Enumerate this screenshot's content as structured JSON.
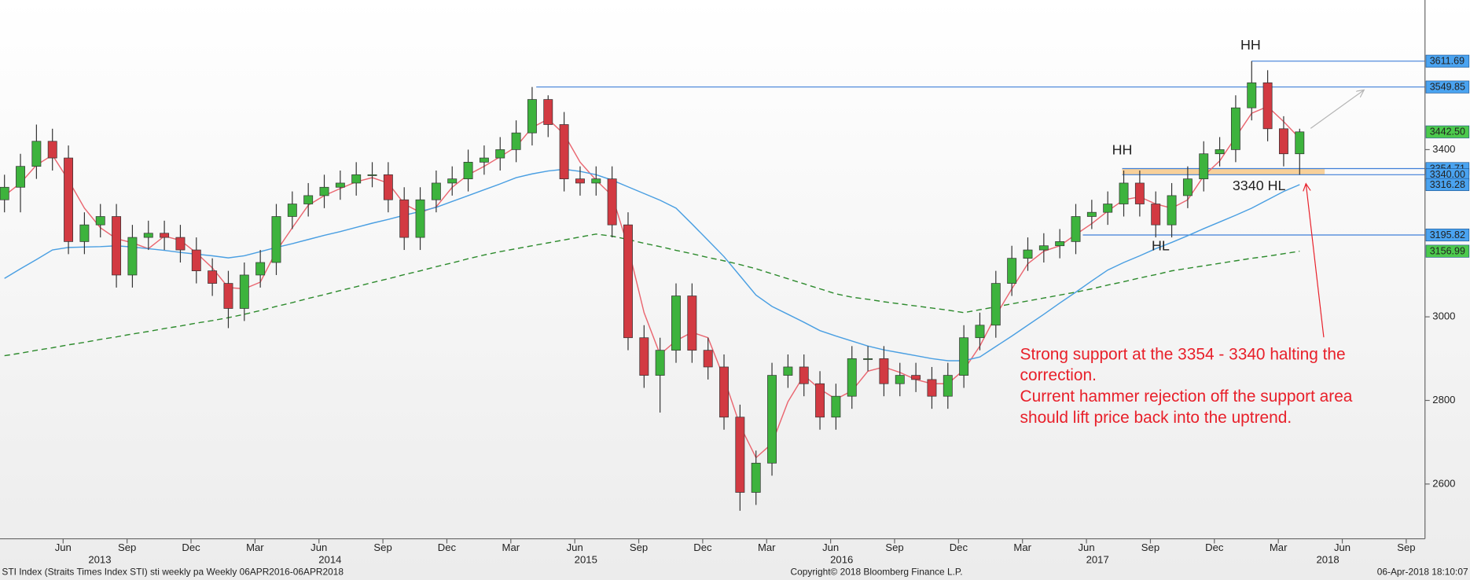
{
  "chart_data": {
    "type": "candlestick",
    "x": [
      2013.1875,
      2013.25,
      2013.3125,
      2013.375,
      2013.4375,
      2013.5,
      2013.5625,
      2013.625,
      2013.6875,
      2013.75,
      2013.8125,
      2013.875,
      2013.9375,
      2014,
      2014.0625,
      2014.125,
      2014.1875,
      2014.25,
      2014.3125,
      2014.375,
      2014.4375,
      2014.5,
      2014.5625,
      2014.625,
      2014.6875,
      2014.75,
      2014.8125,
      2014.875,
      2014.9375,
      2015,
      2015.0625,
      2015.125,
      2015.1875,
      2015.25,
      2015.3125,
      2015.375,
      2015.4375,
      2015.5,
      2015.5625,
      2015.625,
      2015.6875,
      2015.75,
      2015.8125,
      2015.875,
      2015.9375,
      2016,
      2016.0625,
      2016.125,
      2016.1875,
      2016.25,
      2016.3125,
      2016.375,
      2016.4375,
      2016.5,
      2016.5625,
      2016.625,
      2016.6875,
      2016.75,
      2016.8125,
      2016.875,
      2016.9375,
      2017,
      2017.0625,
      2017.125,
      2017.1875,
      2017.25,
      2017.3125,
      2017.375,
      2017.4375,
      2017.5,
      2017.5625,
      2017.625,
      2017.6875,
      2017.75,
      2017.8125,
      2017.875,
      2017.9375,
      2018,
      2018.0625,
      2018.125,
      2018.1875,
      2018.25
    ],
    "open": [
      3280,
      3310,
      3360,
      3420,
      3380,
      3180,
      3220,
      3240,
      3100,
      3190,
      3200,
      3190,
      3160,
      3110,
      3080,
      3020,
      3100,
      3130,
      3240,
      3270,
      3290,
      3310,
      3320,
      3340,
      3340,
      3280,
      3190,
      3280,
      3320,
      3330,
      3370,
      3380,
      3400,
      3440,
      3520,
      3460,
      3330,
      3320,
      3330,
      3220,
      2950,
      2860,
      2920,
      3050,
      2920,
      2880,
      2760,
      2580,
      2650,
      2860,
      2880,
      2840,
      2760,
      2810,
      2900,
      2900,
      2840,
      2860,
      2850,
      2810,
      2860,
      2950,
      2980,
      3080,
      3140,
      3160,
      3170,
      3180,
      3240,
      3250,
      3270,
      3320,
      3270,
      3220,
      3290,
      3330,
      3390,
      3400,
      3500,
      3560,
      3450,
      3390
    ],
    "high": [
      3340,
      3390,
      3460,
      3450,
      3410,
      3250,
      3270,
      3270,
      3220,
      3230,
      3230,
      3220,
      3190,
      3140,
      3110,
      3130,
      3160,
      3270,
      3300,
      3320,
      3340,
      3350,
      3370,
      3370,
      3370,
      3310,
      3310,
      3350,
      3360,
      3400,
      3410,
      3430,
      3470,
      3549.85,
      3530,
      3490,
      3360,
      3360,
      3360,
      3250,
      2980,
      2950,
      3080,
      3080,
      2950,
      2910,
      2790,
      2680,
      2890,
      2910,
      2910,
      2870,
      2840,
      2930,
      2930,
      2930,
      2890,
      2890,
      2880,
      2890,
      2980,
      3010,
      3110,
      3170,
      3190,
      3200,
      3210,
      3270,
      3280,
      3300,
      3350,
      3350,
      3300,
      3320,
      3360,
      3420,
      3430,
      3530,
      3611.69,
      3590,
      3480,
      3450
    ],
    "low": [
      3250,
      3250,
      3330,
      3350,
      3150,
      3150,
      3190,
      3070,
      3070,
      3160,
      3160,
      3130,
      3080,
      3050,
      2973,
      2990,
      3070,
      3100,
      3210,
      3240,
      3260,
      3280,
      3290,
      3310,
      3250,
      3160,
      3160,
      3250,
      3290,
      3300,
      3340,
      3350,
      3370,
      3410,
      3430,
      3300,
      3290,
      3290,
      3190,
      2920,
      2830,
      2771,
      2890,
      2890,
      2850,
      2730,
      2536,
      2550,
      2620,
      2830,
      2810,
      2730,
      2730,
      2780,
      2870,
      2810,
      2810,
      2820,
      2780,
      2780,
      2830,
      2920,
      2950,
      3050,
      3110,
      3130,
      3140,
      3150,
      3210,
      3220,
      3240,
      3240,
      3190,
      3190,
      3260,
      3300,
      3360,
      3370,
      3470,
      3420,
      3360,
      3340
    ],
    "close": [
      3310,
      3360,
      3420,
      3380,
      3180,
      3220,
      3240,
      3100,
      3190,
      3200,
      3190,
      3160,
      3110,
      3080,
      3020,
      3100,
      3130,
      3240,
      3270,
      3290,
      3310,
      3320,
      3340,
      3340,
      3280,
      3190,
      3280,
      3320,
      3330,
      3370,
      3380,
      3400,
      3440,
      3520,
      3460,
      3330,
      3320,
      3330,
      3220,
      2950,
      2860,
      2920,
      3050,
      2920,
      2880,
      2760,
      2580,
      2650,
      2860,
      2880,
      2840,
      2760,
      2810,
      2900,
      2900,
      2840,
      2860,
      2850,
      2810,
      2860,
      2950,
      2980,
      3080,
      3140,
      3160,
      3170,
      3180,
      3240,
      3250,
      3270,
      3320,
      3270,
      3220,
      3290,
      3330,
      3390,
      3400,
      3500,
      3560,
      3450,
      3390,
      3442.5
    ],
    "up_color": "#3db33d",
    "down_color": "#d23a42",
    "moving_averages": [
      {
        "color": "#ea6670",
        "dash": false,
        "values": [
          3290,
          3320,
          3363,
          3387,
          3327,
          3260,
          3213,
          3187,
          3177,
          3163,
          3193,
          3183,
          3153,
          3117,
          3070,
          3067,
          3083,
          3157,
          3213,
          3267,
          3290,
          3307,
          3323,
          3333,
          3320,
          3270,
          3250,
          3263,
          3310,
          3340,
          3360,
          3383,
          3407,
          3453,
          3473,
          3437,
          3370,
          3327,
          3290,
          3167,
          3010,
          2910,
          2943,
          2963,
          2950,
          2853,
          2740,
          2663,
          2697,
          2797,
          2860,
          2827,
          2803,
          2823,
          2870,
          2880,
          2867,
          2850,
          2840,
          2840,
          2873,
          2930,
          3003,
          3067,
          3127,
          3157,
          3170,
          3197,
          3223,
          3253,
          3280,
          3287,
          3270,
          3260,
          3280,
          3337,
          3373,
          3430,
          3487,
          3503,
          3467,
          3427
        ]
      },
      {
        "color": "#4a9fe2",
        "dash": false,
        "values": [
          3092,
          3115,
          3137,
          3160,
          3166,
          3167,
          3168,
          3170,
          3167,
          3163,
          3159,
          3154,
          3150,
          3146,
          3141,
          3146,
          3156,
          3166,
          3175,
          3185,
          3195,
          3204,
          3214,
          3224,
          3233,
          3243,
          3252,
          3262,
          3276,
          3290,
          3304,
          3318,
          3333,
          3342,
          3349,
          3353,
          3348,
          3340,
          3327,
          3311,
          3295,
          3279,
          3260,
          3222,
          3183,
          3144,
          3098,
          3052,
          3025,
          3006,
          2987,
          2967,
          2954,
          2942,
          2930,
          2921,
          2914,
          2907,
          2900,
          2895,
          2895,
          2904,
          2929,
          2954,
          2980,
          3006,
          3033,
          3059,
          3086,
          3112,
          3130,
          3146,
          3163,
          3178,
          3194,
          3211,
          3227,
          3243,
          3260,
          3280,
          3300,
          3316.28
        ]
      },
      {
        "color": "#2e8b2e",
        "dash": true,
        "values": [
          2907,
          2913,
          2920,
          2926,
          2933,
          2939,
          2946,
          2952,
          2959,
          2965,
          2972,
          2978,
          2985,
          2991,
          2998,
          3006,
          3015,
          3025,
          3034,
          3044,
          3053,
          3063,
          3072,
          3082,
          3091,
          3101,
          3110,
          3120,
          3129,
          3139,
          3148,
          3156,
          3163,
          3170,
          3177,
          3184,
          3191,
          3198,
          3193,
          3185,
          3176,
          3168,
          3159,
          3151,
          3142,
          3134,
          3125,
          3115,
          3103,
          3091,
          3079,
          3067,
          3055,
          3047,
          3042,
          3036,
          3031,
          3026,
          3021,
          3016,
          3010,
          3017,
          3024,
          3031,
          3038,
          3045,
          3052,
          3059,
          3067,
          3076,
          3084,
          3093,
          3101,
          3110,
          3116,
          3122,
          3128,
          3134,
          3140,
          3145,
          3151,
          3156.99
        ]
      }
    ],
    "xlim": [
      2013.17,
      2018.74
    ],
    "ylim": [
      2469,
      3758
    ],
    "yticks": [
      2600,
      2800,
      3000,
      3400
    ],
    "xticks": [
      {
        "value": 2013.4167,
        "label": "Jun"
      },
      {
        "value": 2013.6667,
        "label": "Sep"
      },
      {
        "value": 2013.9167,
        "label": "Dec"
      },
      {
        "value": 2014.1667,
        "label": "Mar"
      },
      {
        "value": 2014.4167,
        "label": "Jun"
      },
      {
        "value": 2014.6667,
        "label": "Sep"
      },
      {
        "value": 2014.9167,
        "label": "Dec"
      },
      {
        "value": 2015.1667,
        "label": "Mar"
      },
      {
        "value": 2015.4167,
        "label": "Jun"
      },
      {
        "value": 2015.6667,
        "label": "Sep"
      },
      {
        "value": 2015.9167,
        "label": "Dec"
      },
      {
        "value": 2016.1667,
        "label": "Mar"
      },
      {
        "value": 2016.4167,
        "label": "Jun"
      },
      {
        "value": 2016.6667,
        "label": "Sep"
      },
      {
        "value": 2016.9167,
        "label": "Dec"
      },
      {
        "value": 2017.1667,
        "label": "Mar"
      },
      {
        "value": 2017.4167,
        "label": "Jun"
      },
      {
        "value": 2017.6667,
        "label": "Sep"
      },
      {
        "value": 2017.9167,
        "label": "Dec"
      },
      {
        "value": 2018.1667,
        "label": "Mar"
      },
      {
        "value": 2018.4167,
        "label": "Jun"
      },
      {
        "value": 2018.6667,
        "label": "Sep"
      }
    ],
    "x_year_labels": [
      {
        "value": 2013.56,
        "label": "2013"
      },
      {
        "value": 2014.46,
        "label": "2014"
      },
      {
        "value": 2015.46,
        "label": "2015"
      },
      {
        "value": 2016.46,
        "label": "2016"
      },
      {
        "value": 2017.46,
        "label": "2017"
      },
      {
        "value": 2018.36,
        "label": "2018"
      }
    ],
    "price_tags": [
      {
        "value": 3611.69,
        "color": "#4aa3f0"
      },
      {
        "value": 3549.85,
        "color": "#4aa3f0"
      },
      {
        "value": 3442.5,
        "label": "3442.50",
        "color": "#4cc94c"
      },
      {
        "value": 3354.71,
        "color": "#4aa3f0"
      },
      {
        "value": 3340,
        "label": "3340.00",
        "color": "#4aa3f0"
      },
      {
        "value": 3316.28,
        "color": "#4aa3f0"
      },
      {
        "value": 3195.82,
        "color": "#4aa3f0"
      },
      {
        "value": 3156.99,
        "color": "#4cc94c"
      }
    ],
    "level_color": "#3f7fd8",
    "zone_color": "#f7c98a",
    "annotations": [
      "HH",
      "HH",
      "HL",
      "3340 HL"
    ],
    "note": [
      "Strong support at the 3354 - 3340 halting the",
      "correction.",
      "Current hammer rejection off the support area",
      "should lift price back into the uptrend."
    ],
    "note_color": "#e8202a",
    "footer": {
      "left": "STI Index (Straits Times Index STI) sti weekly pa  Weekly 06APR2016-06APR2018",
      "center": "Copyright© 2018 Bloomberg Finance L.P.",
      "right": "06-Apr-2018 18:10:07"
    }
  }
}
